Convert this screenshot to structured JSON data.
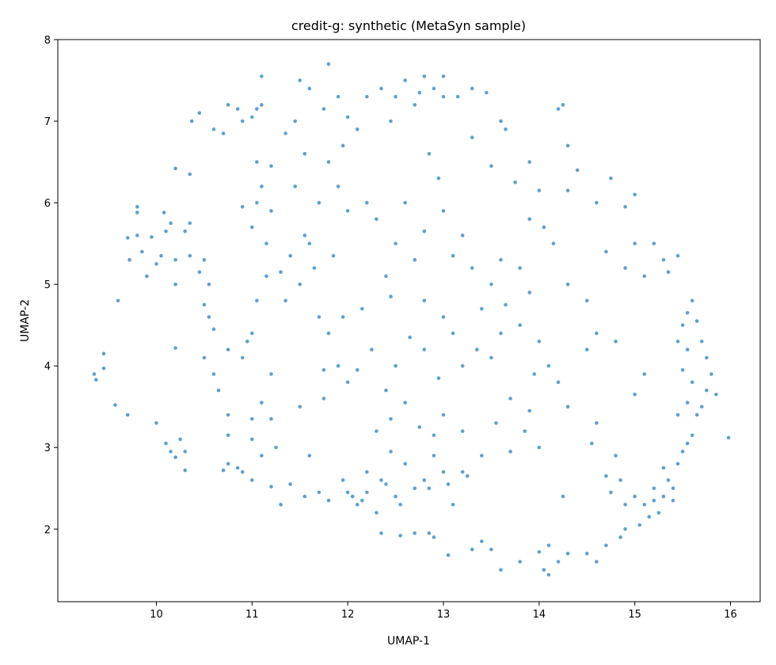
{
  "chart_data": {
    "type": "scatter",
    "title": "credit-g: synthetic (MetaSyn sample)",
    "x_label": "UMAP-1",
    "y_label": "UMAP-2",
    "color": "#1f77b4",
    "xlim": [
      8.97,
      16.31
    ],
    "ylim": [
      1.11,
      8.0
    ],
    "xticks": [
      10,
      11,
      12,
      13,
      14,
      15,
      16
    ],
    "yticks": [
      2,
      3,
      4,
      5,
      6,
      7,
      8
    ],
    "x": [
      9.35,
      9.37,
      9.45,
      9.45,
      9.57,
      9.7,
      9.6,
      9.7,
      9.72,
      9.8,
      9.8,
      9.8,
      9.85,
      9.9,
      9.95,
      10.0,
      10.05,
      10.08,
      10.1,
      10.15,
      10.2,
      10.2,
      10.3,
      10.35,
      10.35,
      10.45,
      10.2,
      10.35,
      10.37,
      10.45,
      10.6,
      10.7,
      10.75,
      10.85,
      10.9,
      11.0,
      11.05,
      11.1,
      11.05,
      11.2,
      11.1,
      11.05,
      10.9,
      11.0,
      11.1,
      11.15,
      11.2,
      10.5,
      10.55,
      10.6,
      10.5,
      10.55,
      10.6,
      10.65,
      10.5,
      10.2,
      10.0,
      10.1,
      10.15,
      10.2,
      10.25,
      10.3,
      10.3,
      10.75,
      10.7,
      10.85,
      10.9,
      11.0,
      11.2,
      11.3,
      11.4,
      10.75,
      10.75,
      11.0,
      11.0,
      11.1,
      11.2,
      11.1,
      11.25,
      11.5,
      10.75,
      10.9,
      10.95,
      11.0,
      11.2,
      11.05,
      11.15,
      11.3,
      11.35,
      11.4,
      11.5,
      11.55,
      11.65,
      11.7,
      11.8,
      11.9,
      11.95,
      11.75,
      11.75,
      11.8,
      11.7,
      11.6,
      11.55,
      11.95,
      12.0,
      12.05,
      12.1,
      12.15,
      12.2,
      12.2,
      12.3,
      12.35,
      12.4,
      12.5,
      12.55,
      12.6,
      12.7,
      12.8,
      12.9,
      12.9,
      12.85,
      13.0,
      13.05,
      13.1,
      13.2,
      13.25,
      12.35,
      12.55,
      12.7,
      12.85,
      12.9,
      13.05,
      13.3,
      13.4,
      13.5,
      13.6,
      13.8,
      14.0,
      14.1,
      14.05,
      14.1,
      14.2,
      14.3,
      14.5,
      14.6,
      14.7,
      14.85,
      14.9,
      14.9,
      15.0,
      15.1,
      15.2,
      15.25,
      15.3,
      15.4,
      15.35,
      15.3,
      15.45,
      15.5,
      15.55,
      15.6,
      15.65,
      15.7,
      15.75,
      15.8,
      15.75,
      15.7,
      15.65,
      15.6,
      15.55,
      15.5,
      15.45,
      15.55,
      15.5,
      15.6,
      15.55,
      15.45,
      15.85,
      15.98,
      14.85,
      14.75,
      14.7,
      14.8,
      14.55,
      14.6,
      14.3,
      14.2,
      14.1,
      13.95,
      14.0,
      13.8,
      13.6,
      13.5,
      13.35,
      13.2,
      13.1,
      13.0,
      12.95,
      12.8,
      12.65,
      12.5,
      12.4,
      12.3,
      12.45,
      12.6,
      12.45,
      12.75,
      13.0,
      13.2,
      13.4,
      13.55,
      13.7,
      13.85,
      14.0,
      13.7,
      13.9,
      14.25,
      14.6,
      14.8,
      14.5,
      15.1,
      15.0,
      13.8,
      13.9,
      14.0,
      14.15,
      14.3,
      14.5,
      14.7,
      14.9,
      15.0,
      15.1,
      15.2,
      15.3,
      15.45,
      15.35,
      14.9,
      15.0,
      14.6,
      14.4,
      14.3,
      14.75,
      14.05,
      13.6,
      13.5,
      13.3,
      13.2,
      13.0,
      12.95,
      12.8,
      12.7,
      12.5,
      12.4,
      12.3,
      12.2,
      12.0,
      11.9,
      11.8,
      11.95,
      12.1,
      12.0,
      12.2,
      12.35,
      12.5,
      12.6,
      12.75,
      12.8,
      12.9,
      13.0,
      13.0,
      12.7,
      12.45,
      11.8,
      11.9,
      11.75,
      11.6,
      11.5,
      11.45,
      11.35,
      11.55,
      11.7,
      11.45,
      12.6,
      12.85,
      13.3,
      13.15,
      13.3,
      13.45,
      13.6,
      13.65,
      13.5,
      13.75,
      13.9,
      14.2,
      14.3,
      14.25,
      13.1,
      13.4,
      13.65,
      13.9,
      12.15,
      12.25,
      12.1,
      12.0,
      11.85,
      11.6,
      12.8,
      12.45,
      15.15,
      15.2,
      15.4,
      15.05
    ],
    "y": [
      3.9,
      3.83,
      4.15,
      3.97,
      3.52,
      3.4,
      4.8,
      5.57,
      5.3,
      5.95,
      5.88,
      5.6,
      5.4,
      5.1,
      5.58,
      5.25,
      5.35,
      5.88,
      5.65,
      5.75,
      5.3,
      5.0,
      5.65,
      5.75,
      5.35,
      5.15,
      6.42,
      6.35,
      7.0,
      7.1,
      6.9,
      6.85,
      7.2,
      7.15,
      7.0,
      7.05,
      7.15,
      7.2,
      6.5,
      6.45,
      7.55,
      6.0,
      5.95,
      5.7,
      6.2,
      5.5,
      5.9,
      4.75,
      4.6,
      4.45,
      5.3,
      5.0,
      3.9,
      3.7,
      4.1,
      4.22,
      3.3,
      3.05,
      2.95,
      2.88,
      3.1,
      2.95,
      2.72,
      2.8,
      2.72,
      2.75,
      2.7,
      2.6,
      2.52,
      2.3,
      2.55,
      3.4,
      3.15,
      3.35,
      3.1,
      3.55,
      3.35,
      2.9,
      3.0,
      3.5,
      4.2,
      4.1,
      4.3,
      4.4,
      3.9,
      4.8,
      5.1,
      5.15,
      4.8,
      5.35,
      5.0,
      5.6,
      5.2,
      4.6,
      4.4,
      4.0,
      4.6,
      3.95,
      3.6,
      2.35,
      2.45,
      2.9,
      2.4,
      2.6,
      2.45,
      2.4,
      2.3,
      2.35,
      2.45,
      2.7,
      2.2,
      2.6,
      2.55,
      2.4,
      2.3,
      2.8,
      2.5,
      2.6,
      2.9,
      3.15,
      2.5,
      2.7,
      2.55,
      2.3,
      2.7,
      2.65,
      1.95,
      1.92,
      1.95,
      1.95,
      1.9,
      1.68,
      1.75,
      1.85,
      1.75,
      1.5,
      1.6,
      1.72,
      1.8,
      1.5,
      1.44,
      1.6,
      1.7,
      1.7,
      1.6,
      1.8,
      1.9,
      2.0,
      2.3,
      2.4,
      2.3,
      2.35,
      2.2,
      2.4,
      2.5,
      2.6,
      2.75,
      2.8,
      2.95,
      3.05,
      3.15,
      3.4,
      3.5,
      3.7,
      3.9,
      4.1,
      4.3,
      4.55,
      4.8,
      4.65,
      4.5,
      4.3,
      4.2,
      3.95,
      3.8,
      3.55,
      3.4,
      3.65,
      3.12,
      2.6,
      2.45,
      2.65,
      2.9,
      3.05,
      3.3,
      3.5,
      3.8,
      4.0,
      3.9,
      4.3,
      4.5,
      4.4,
      4.1,
      4.2,
      4.0,
      4.4,
      4.6,
      3.85,
      4.2,
      4.35,
      4.0,
      3.7,
      3.2,
      3.35,
      3.55,
      2.95,
      3.25,
      3.4,
      3.2,
      2.9,
      3.3,
      2.95,
      3.2,
      3.0,
      3.6,
      3.45,
      2.4,
      4.4,
      4.3,
      4.2,
      3.9,
      3.65,
      5.2,
      5.8,
      6.15,
      5.5,
      5.0,
      4.8,
      5.4,
      5.2,
      5.5,
      5.1,
      5.5,
      5.3,
      5.35,
      5.15,
      5.95,
      6.1,
      6.0,
      6.4,
      6.15,
      6.3,
      5.7,
      5.3,
      5.0,
      5.2,
      5.6,
      5.9,
      6.3,
      5.65,
      5.3,
      5.5,
      5.1,
      5.8,
      6.0,
      5.9,
      6.2,
      6.5,
      6.7,
      6.9,
      7.05,
      7.3,
      7.4,
      7.3,
      7.5,
      7.35,
      7.55,
      7.4,
      7.3,
      7.55,
      7.2,
      7.0,
      7.7,
      7.3,
      7.15,
      7.4,
      7.5,
      7.0,
      6.85,
      6.6,
      6.0,
      6.2,
      6.0,
      6.6,
      6.8,
      7.3,
      7.4,
      7.35,
      7.0,
      6.9,
      6.45,
      6.25,
      6.5,
      7.15,
      6.7,
      7.2,
      5.35,
      4.7,
      4.75,
      4.9,
      4.7,
      4.2,
      3.95,
      3.8,
      5.35,
      5.5,
      4.8,
      4.85,
      2.15,
      2.5,
      2.35,
      2.05
    ]
  }
}
